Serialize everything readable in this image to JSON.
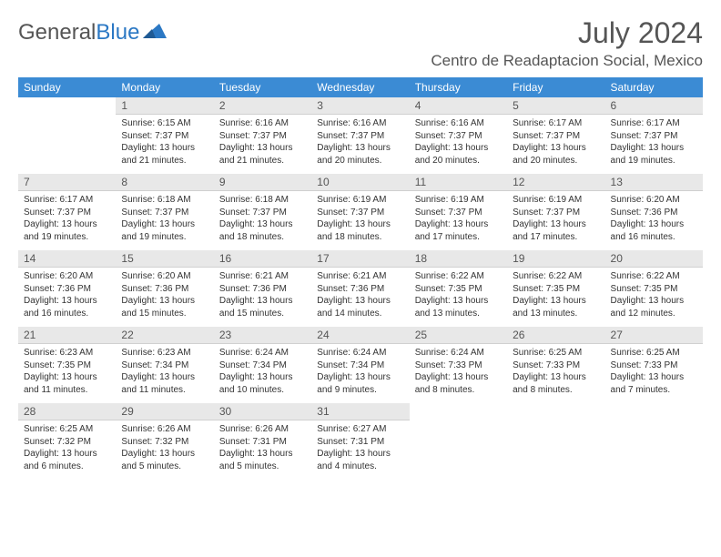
{
  "logo": {
    "text_gray": "General",
    "text_blue": "Blue",
    "shape_color": "#2b78c4"
  },
  "title": "July 2024",
  "location": "Centro de Readaptacion Social, Mexico",
  "colors": {
    "header_bg": "#3b8bd4",
    "header_fg": "#ffffff",
    "daynum_bg": "#e8e8e8",
    "text": "#333333"
  },
  "day_headers": [
    "Sunday",
    "Monday",
    "Tuesday",
    "Wednesday",
    "Thursday",
    "Friday",
    "Saturday"
  ],
  "weeks": [
    [
      null,
      {
        "n": "1",
        "sr": "6:15 AM",
        "ss": "7:37 PM",
        "dl": "13 hours and 21 minutes."
      },
      {
        "n": "2",
        "sr": "6:16 AM",
        "ss": "7:37 PM",
        "dl": "13 hours and 21 minutes."
      },
      {
        "n": "3",
        "sr": "6:16 AM",
        "ss": "7:37 PM",
        "dl": "13 hours and 20 minutes."
      },
      {
        "n": "4",
        "sr": "6:16 AM",
        "ss": "7:37 PM",
        "dl": "13 hours and 20 minutes."
      },
      {
        "n": "5",
        "sr": "6:17 AM",
        "ss": "7:37 PM",
        "dl": "13 hours and 20 minutes."
      },
      {
        "n": "6",
        "sr": "6:17 AM",
        "ss": "7:37 PM",
        "dl": "13 hours and 19 minutes."
      }
    ],
    [
      {
        "n": "7",
        "sr": "6:17 AM",
        "ss": "7:37 PM",
        "dl": "13 hours and 19 minutes."
      },
      {
        "n": "8",
        "sr": "6:18 AM",
        "ss": "7:37 PM",
        "dl": "13 hours and 19 minutes."
      },
      {
        "n": "9",
        "sr": "6:18 AM",
        "ss": "7:37 PM",
        "dl": "13 hours and 18 minutes."
      },
      {
        "n": "10",
        "sr": "6:19 AM",
        "ss": "7:37 PM",
        "dl": "13 hours and 18 minutes."
      },
      {
        "n": "11",
        "sr": "6:19 AM",
        "ss": "7:37 PM",
        "dl": "13 hours and 17 minutes."
      },
      {
        "n": "12",
        "sr": "6:19 AM",
        "ss": "7:37 PM",
        "dl": "13 hours and 17 minutes."
      },
      {
        "n": "13",
        "sr": "6:20 AM",
        "ss": "7:36 PM",
        "dl": "13 hours and 16 minutes."
      }
    ],
    [
      {
        "n": "14",
        "sr": "6:20 AM",
        "ss": "7:36 PM",
        "dl": "13 hours and 16 minutes."
      },
      {
        "n": "15",
        "sr": "6:20 AM",
        "ss": "7:36 PM",
        "dl": "13 hours and 15 minutes."
      },
      {
        "n": "16",
        "sr": "6:21 AM",
        "ss": "7:36 PM",
        "dl": "13 hours and 15 minutes."
      },
      {
        "n": "17",
        "sr": "6:21 AM",
        "ss": "7:36 PM",
        "dl": "13 hours and 14 minutes."
      },
      {
        "n": "18",
        "sr": "6:22 AM",
        "ss": "7:35 PM",
        "dl": "13 hours and 13 minutes."
      },
      {
        "n": "19",
        "sr": "6:22 AM",
        "ss": "7:35 PM",
        "dl": "13 hours and 13 minutes."
      },
      {
        "n": "20",
        "sr": "6:22 AM",
        "ss": "7:35 PM",
        "dl": "13 hours and 12 minutes."
      }
    ],
    [
      {
        "n": "21",
        "sr": "6:23 AM",
        "ss": "7:35 PM",
        "dl": "13 hours and 11 minutes."
      },
      {
        "n": "22",
        "sr": "6:23 AM",
        "ss": "7:34 PM",
        "dl": "13 hours and 11 minutes."
      },
      {
        "n": "23",
        "sr": "6:24 AM",
        "ss": "7:34 PM",
        "dl": "13 hours and 10 minutes."
      },
      {
        "n": "24",
        "sr": "6:24 AM",
        "ss": "7:34 PM",
        "dl": "13 hours and 9 minutes."
      },
      {
        "n": "25",
        "sr": "6:24 AM",
        "ss": "7:33 PM",
        "dl": "13 hours and 8 minutes."
      },
      {
        "n": "26",
        "sr": "6:25 AM",
        "ss": "7:33 PM",
        "dl": "13 hours and 8 minutes."
      },
      {
        "n": "27",
        "sr": "6:25 AM",
        "ss": "7:33 PM",
        "dl": "13 hours and 7 minutes."
      }
    ],
    [
      {
        "n": "28",
        "sr": "6:25 AM",
        "ss": "7:32 PM",
        "dl": "13 hours and 6 minutes."
      },
      {
        "n": "29",
        "sr": "6:26 AM",
        "ss": "7:32 PM",
        "dl": "13 hours and 5 minutes."
      },
      {
        "n": "30",
        "sr": "6:26 AM",
        "ss": "7:31 PM",
        "dl": "13 hours and 5 minutes."
      },
      {
        "n": "31",
        "sr": "6:27 AM",
        "ss": "7:31 PM",
        "dl": "13 hours and 4 minutes."
      },
      null,
      null,
      null
    ]
  ],
  "labels": {
    "sunrise": "Sunrise:",
    "sunset": "Sunset:",
    "daylight": "Daylight:"
  }
}
